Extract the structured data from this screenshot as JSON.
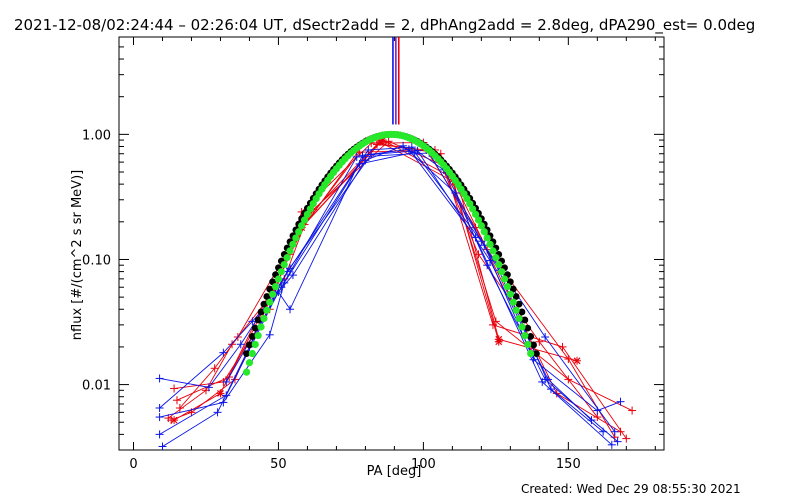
{
  "chart_data": {
    "type": "scatter",
    "title": "2021-12-08/02:24:44 – 02:26:04 UT, dSectr2add = 2, dPhAng2add = 2.8deg, dPA290_est=  0.0deg",
    "xlabel": "PA [deg]",
    "ylabel": "nflux [#/(cm^2 s sr MeV)]",
    "xlim": [
      -5,
      183
    ],
    "ylim": [
      0.003,
      6
    ],
    "yscale": "log",
    "grid": false,
    "x_ticks": [
      0,
      50,
      100,
      150
    ],
    "x_tick_labels": [
      "0",
      "50",
      "100",
      "150"
    ],
    "y_ticks": [
      0.01,
      0.1,
      1.0
    ],
    "y_tick_labels": [
      "0.01",
      "0.10",
      "1.00"
    ],
    "colors": {
      "red": "#e8000b",
      "blue": "#0a14e6",
      "black": "#000000",
      "green": "#27e82a",
      "purple": "#7a1fc4"
    },
    "vertical_markers": [
      {
        "x": 89.5,
        "color": "#0a14e6"
      },
      {
        "x": 90.5,
        "color": "#7a1fc4"
      },
      {
        "x": 91.5,
        "color": "#e8000b"
      }
    ],
    "series": [
      {
        "color": "#e8000b",
        "marker": "plus",
        "points": [
          [
            14,
            0.0093
          ],
          [
            31,
            0.0105
          ],
          [
            47,
            0.04
          ],
          [
            58,
            0.24
          ],
          [
            82,
            0.85
          ],
          [
            100,
            0.86
          ],
          [
            110,
            0.42
          ],
          [
            125,
            0.032
          ],
          [
            150,
            0.011
          ],
          [
            172,
            0.0062
          ]
        ]
      },
      {
        "color": "#e8000b",
        "marker": "plus",
        "points": [
          [
            12,
            0.0054
          ],
          [
            25,
            0.009
          ],
          [
            34,
            0.021
          ],
          [
            52,
            0.07
          ],
          [
            59,
            0.19
          ],
          [
            78,
            0.72
          ],
          [
            104,
            0.75
          ],
          [
            119,
            0.11
          ],
          [
            140,
            0.022
          ],
          [
            160,
            0.0055
          ]
        ]
      },
      {
        "color": "#e8000b",
        "marker": "plus",
        "points": [
          [
            16,
            0.0065
          ],
          [
            28,
            0.0135
          ],
          [
            36,
            0.024
          ],
          [
            56,
            0.15
          ],
          [
            80,
            0.88
          ],
          [
            106,
            0.7
          ],
          [
            124,
            0.03
          ],
          [
            148,
            0.02
          ],
          [
            170,
            0.0037
          ]
        ]
      },
      {
        "color": "#e8000b",
        "marker": "plus",
        "points": [
          [
            15,
            0.0075
          ],
          [
            33,
            0.0115
          ],
          [
            48,
            0.055
          ],
          [
            60,
            0.22
          ],
          [
            84,
            0.83
          ],
          [
            101,
            0.75
          ],
          [
            118,
            0.18
          ],
          [
            146,
            0.0085
          ],
          [
            168,
            0.0042
          ]
        ]
      },
      {
        "color": "#e8000b",
        "marker": "plus",
        "points": [
          [
            13,
            0.0052
          ],
          [
            20,
            0.006
          ],
          [
            35,
            0.011
          ],
          [
            54,
            0.11
          ],
          [
            62,
            0.25
          ],
          [
            88,
            0.88
          ],
          [
            108,
            0.55
          ],
          [
            122,
            0.12
          ],
          [
            150,
            0.016
          ],
          [
            166,
            0.0038
          ]
        ]
      },
      {
        "color": "#e8000b",
        "marker": "star",
        "points": [
          [
            14,
            0.0052
          ],
          [
            30,
            0.0085
          ],
          [
            58,
            0.18
          ],
          [
            85,
            0.87
          ],
          [
            112,
            0.4
          ],
          [
            126,
            0.023
          ],
          [
            153,
            0.0155
          ]
        ]
      },
      {
        "color": "#e8000b",
        "marker": "star",
        "points": [
          [
            57,
            0.17
          ],
          [
            86,
            0.9
          ],
          [
            110,
            0.45
          ],
          [
            126,
            0.022
          ]
        ]
      },
      {
        "color": "#0a14e6",
        "marker": "plus",
        "points": [
          [
            9,
            0.0112
          ],
          [
            26,
            0.0095
          ],
          [
            37,
            0.021
          ],
          [
            54,
            0.085
          ],
          [
            81,
            0.75
          ],
          [
            96,
            0.79
          ],
          [
            107,
            0.52
          ],
          [
            120,
            0.14
          ],
          [
            142,
            0.024
          ],
          [
            166,
            0.0042
          ]
        ]
      },
      {
        "color": "#0a14e6",
        "marker": "plus",
        "points": [
          [
            9,
            0.0065
          ],
          [
            31,
            0.018
          ],
          [
            41,
            0.032
          ],
          [
            55,
            0.075
          ],
          [
            80,
            0.62
          ],
          [
            93,
            0.81
          ],
          [
            111,
            0.34
          ],
          [
            122,
            0.09
          ],
          [
            142,
            0.011
          ],
          [
            167,
            0.0035
          ]
        ]
      },
      {
        "color": "#0a14e6",
        "marker": "plus",
        "points": [
          [
            9,
            0.0055
          ],
          [
            31,
            0.0072
          ],
          [
            47,
            0.025
          ],
          [
            52,
            0.065
          ],
          [
            78,
            0.58
          ],
          [
            97,
            0.72
          ],
          [
            121,
            0.13
          ],
          [
            138,
            0.0158
          ],
          [
            160,
            0.0062
          ],
          [
            168,
            0.0073
          ]
        ]
      },
      {
        "color": "#0a14e6",
        "marker": "plus",
        "points": [
          [
            9,
            0.004
          ],
          [
            32,
            0.0082
          ],
          [
            50,
            0.055
          ],
          [
            54,
            0.04
          ],
          [
            79,
            0.68
          ],
          [
            95,
            0.76
          ],
          [
            118,
            0.15
          ],
          [
            141,
            0.0105
          ],
          [
            165,
            0.0033
          ]
        ]
      },
      {
        "color": "#0a14e6",
        "marker": "plus",
        "points": [
          [
            10,
            0.0032
          ],
          [
            29,
            0.006
          ],
          [
            40,
            0.02
          ],
          [
            53,
            0.08
          ],
          [
            82,
            0.69
          ],
          [
            98,
            0.74
          ],
          [
            123,
            0.098
          ],
          [
            143,
            0.011
          ],
          [
            158,
            0.0052
          ]
        ]
      },
      {
        "color": "#0a14e6",
        "marker": "plus",
        "points": [
          [
            32,
            0.0105
          ],
          [
            51,
            0.06
          ],
          [
            77,
            0.66
          ],
          [
            102,
            0.71
          ],
          [
            126,
            0.082
          ],
          [
            144,
            0.0092
          ],
          [
            162,
            0.0042
          ]
        ]
      }
    ],
    "fit_curves": [
      {
        "color": "#000000",
        "marker": "dot",
        "center": 89,
        "sigma": 17.6,
        "peak": 1.0,
        "x_range": [
          39,
          139
        ]
      },
      {
        "color": "#27e82a",
        "marker": "dot",
        "center": 89,
        "sigma": 16.9,
        "peak": 1.0,
        "x_range": [
          39,
          137
        ]
      }
    ]
  },
  "footer": {
    "created": "Created: Wed Dec 29 08:55:30 2021"
  }
}
